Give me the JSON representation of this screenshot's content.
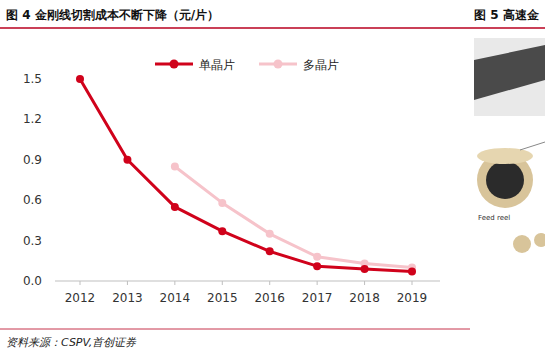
{
  "chart_data": {
    "type": "line",
    "title": "图 4 金刚线切割成本不断下降（元/片）",
    "categories": [
      "2012",
      "2013",
      "2014",
      "2015",
      "2016",
      "2017",
      "2018",
      "2019"
    ],
    "series": [
      {
        "name": "单晶片",
        "color": "#d0021b",
        "marker": "circle",
        "values": [
          1.5,
          0.9,
          0.55,
          0.37,
          0.22,
          0.11,
          0.09,
          0.07
        ]
      },
      {
        "name": "多晶片",
        "color": "#f6c3ca",
        "marker": "circle",
        "values": [
          null,
          null,
          0.85,
          0.58,
          0.35,
          0.18,
          0.13,
          0.1
        ]
      }
    ],
    "ylim": [
      0,
      1.5
    ],
    "yticks": [
      {
        "value": 0,
        "label": "0.0"
      },
      {
        "value": 0.3,
        "label": "0.3"
      },
      {
        "value": 0.6,
        "label": "0.6"
      },
      {
        "value": 0.9,
        "label": "0.9"
      },
      {
        "value": 1.2,
        "label": "1.2"
      },
      {
        "value": 1.5,
        "label": "1.5"
      }
    ],
    "grid": false,
    "legend": "top"
  },
  "source": "资料来源：CSPV,首创证券",
  "side_figure": {
    "title": "图 5 高速金",
    "labels": [
      "Feed reel"
    ]
  }
}
